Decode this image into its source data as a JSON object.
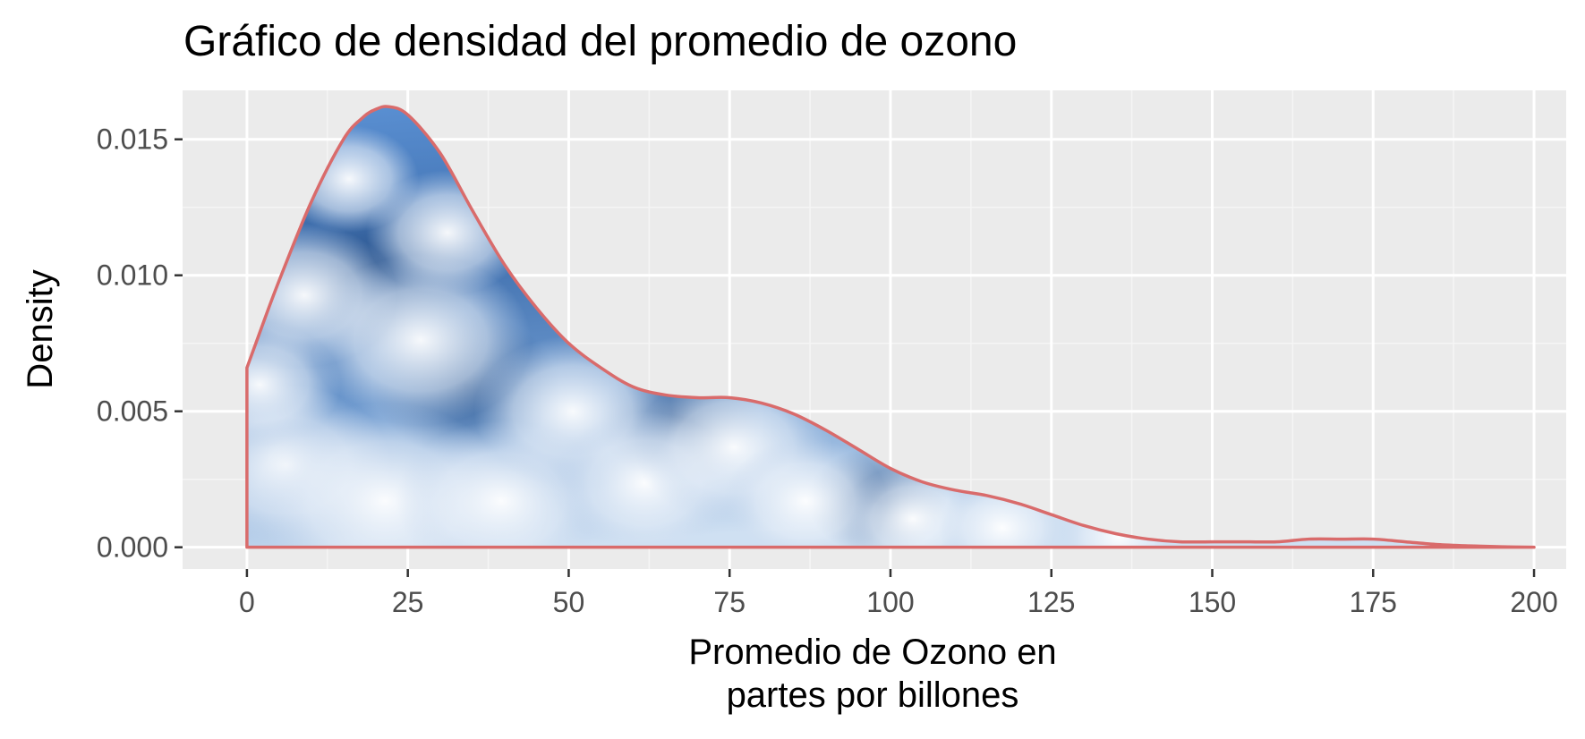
{
  "chart_data": {
    "type": "area",
    "title": "Gráfico de densidad del promedio de ozono",
    "xlabel_lines": [
      "Promedio de Ozono en",
      "partes por billones"
    ],
    "ylabel": "Density",
    "xlim": [
      -10,
      205
    ],
    "ylim": [
      -0.0008,
      0.0168
    ],
    "x_ticks": [
      0,
      25,
      50,
      75,
      100,
      125,
      150,
      175,
      200
    ],
    "x_tick_labels": [
      "0",
      "25",
      "50",
      "75",
      "100",
      "125",
      "150",
      "175",
      "200"
    ],
    "y_ticks": [
      0,
      0.005,
      0.01,
      0.015
    ],
    "y_tick_labels": [
      "0.000",
      "0.005",
      "0.010",
      "0.015"
    ],
    "grid": true,
    "series": [
      {
        "x": [
          0,
          2,
          5,
          10,
          15,
          18,
          20,
          22,
          25,
          30,
          35,
          40,
          45,
          50,
          55,
          60,
          65,
          70,
          75,
          80,
          85,
          90,
          95,
          100,
          105,
          110,
          115,
          120,
          125,
          130,
          135,
          140,
          145,
          150,
          155,
          160,
          165,
          170,
          175,
          180,
          185,
          190,
          195,
          200
        ],
        "y": [
          0.0066,
          0.0079,
          0.0098,
          0.0127,
          0.015,
          0.0158,
          0.0161,
          0.0162,
          0.0159,
          0.0145,
          0.0124,
          0.0104,
          0.0088,
          0.0075,
          0.0066,
          0.0059,
          0.0056,
          0.0055,
          0.0055,
          0.0053,
          0.0049,
          0.0043,
          0.0036,
          0.0029,
          0.0024,
          0.0021,
          0.0019,
          0.0016,
          0.0012,
          0.0008,
          0.0005,
          0.0003,
          0.0002,
          0.0002,
          0.0002,
          0.0002,
          0.0003,
          0.0003,
          0.0003,
          0.0002,
          0.0001,
          5e-05,
          2e-05,
          0.0
        ]
      }
    ],
    "colors": {
      "panel_bg": "#ebebeb",
      "grid_major": "#ffffff",
      "grid_minor": "#f5f5f5",
      "outline": "#d96b6b",
      "fill_sky_light": "#e8f1fa",
      "fill_sky_mid": "#6f9bd0",
      "fill_sky_dark": "#2f5c98"
    }
  }
}
